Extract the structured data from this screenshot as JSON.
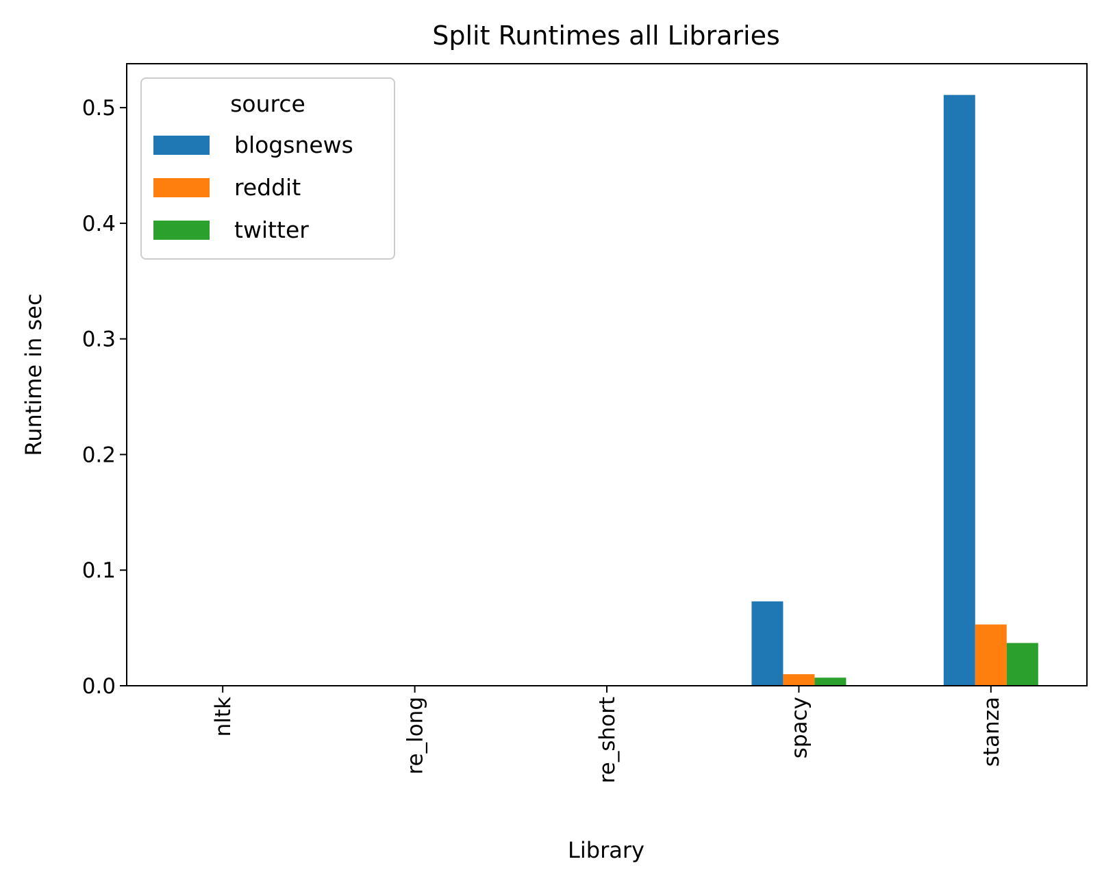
{
  "chart_data": {
    "type": "bar",
    "title": "Split Runtimes all Libraries",
    "xlabel": "Library",
    "ylabel": "Runtime in sec",
    "categories": [
      "nltk",
      "re_long",
      "re_short",
      "spacy",
      "stanza"
    ],
    "series": [
      {
        "name": "blogsnews",
        "color": "#1f77b4",
        "values": [
          0.0,
          0.0,
          0.0,
          0.073,
          0.511
        ]
      },
      {
        "name": "reddit",
        "color": "#ff7f0e",
        "values": [
          0.0,
          0.0,
          0.0,
          0.01,
          0.053
        ]
      },
      {
        "name": "twitter",
        "color": "#2ca02c",
        "values": [
          0.0,
          0.0,
          0.0,
          0.007,
          0.037
        ]
      }
    ],
    "ylim": [
      0,
      0.538
    ],
    "yticks": [
      0.0,
      0.1,
      0.2,
      0.3,
      0.4,
      0.5
    ],
    "ytick_labels": [
      "0.0",
      "0.1",
      "0.2",
      "0.3",
      "0.4",
      "0.5"
    ],
    "grid": false,
    "legend": {
      "title": "source",
      "placement": "top-left"
    }
  }
}
